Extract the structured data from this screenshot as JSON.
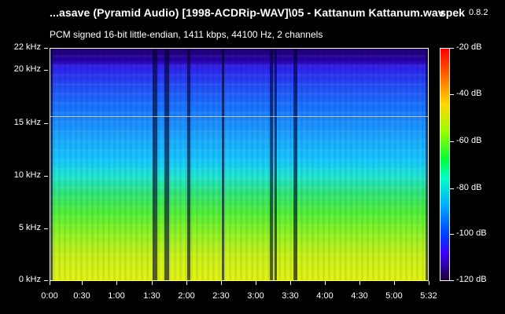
{
  "header": {
    "file_name": "...asave (Pyramid Audio) [1998-ACDRip-WAV]\\05 - Kattanum Kattanum.wav",
    "app_name": "spek",
    "app_version": "0.8.2",
    "audio_info": "PCM signed 16-bit little-endian, 1411 kbps, 44100 Hz, 2 channels"
  },
  "frequency_axis": {
    "labels": [
      "22 kHz",
      "20 kHz",
      "15 kHz",
      "10 kHz",
      "5 kHz",
      "0 kHz"
    ]
  },
  "time_axis": {
    "labels": [
      "0:00",
      "0:30",
      "1:00",
      "1:30",
      "2:00",
      "2:30",
      "3:00",
      "3:30",
      "4:00",
      "4:30",
      "5:00",
      "5:32"
    ]
  },
  "db_scale": {
    "labels": [
      "-20 dB",
      "-40 dB",
      "-60 dB",
      "-80 dB",
      "-100 dB",
      "-120 dB"
    ]
  },
  "colors": {
    "background": "#000000",
    "text": "#ffffff"
  }
}
